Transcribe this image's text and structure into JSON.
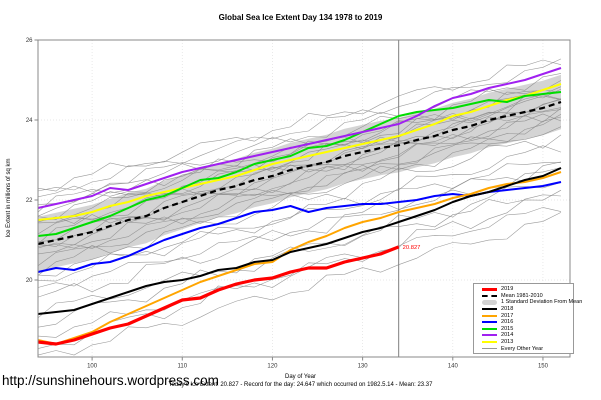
{
  "footer": {
    "url": "http://sunshinehours.wordpress.com"
  },
  "chart_data": {
    "type": "line",
    "title": "Global Sea Ice Extent Day 134 1978 to 2019",
    "xlabel": "Day of Year",
    "ylabel": "Ice Extent in millions of sq km",
    "caption": "Today's Ice Extent: 20.827  - Record for the day: 24.647 which occurred on 1982.5.14  - Mean: 23.37",
    "stats": {
      "today_extent": 20.827,
      "record_for_day": 24.647,
      "record_date": "1982.5.14",
      "mean": 23.37
    },
    "xlim": [
      94,
      153
    ],
    "ylim": [
      18.075,
      26
    ],
    "xticks": [
      100,
      110,
      120,
      130,
      140,
      150
    ],
    "yticks": [
      20,
      22,
      24,
      26
    ],
    "grid": "dotted",
    "today_day": 134,
    "annotation": {
      "label": "20.827",
      "day": 134,
      "value": 20.827,
      "color": "#FF0000"
    },
    "colors": {
      "axis": "#888888",
      "grid": "#E0E0E0",
      "band": "#D4D4D4",
      "today_line": "#808080",
      "background_line": "#8a8a8a"
    },
    "legend": {
      "position": "bottom-right",
      "items": [
        {
          "label": "2019",
          "style": "thick",
          "color": "#FF0000"
        },
        {
          "label": "Mean 1981-2010",
          "style": "dashed",
          "color": "#000000"
        },
        {
          "label": "1 Standard Deviation From Mean",
          "style": "band",
          "color": "#D3D3D3"
        },
        {
          "label": "2018",
          "style": "line",
          "color": "#000000"
        },
        {
          "label": "2017",
          "style": "line",
          "color": "#FFA500"
        },
        {
          "label": "2016",
          "style": "line",
          "color": "#0000FF"
        },
        {
          "label": "2015",
          "style": "line",
          "color": "#00DD00"
        },
        {
          "label": "2014",
          "style": "line",
          "color": "#A020F0"
        },
        {
          "label": "2013",
          "style": "line",
          "color": "#FFFF00"
        },
        {
          "label": "Every Other Year",
          "style": "thin",
          "color": "#999999"
        }
      ]
    },
    "std_band": {
      "label": "1 Standard Deviation From Mean",
      "color": "#D4D4D4",
      "halfwidth": 0.68
    },
    "series": [
      {
        "key": "y2016",
        "name": "2016",
        "color": "#0000FF",
        "width": 2,
        "points": [
          [
            94,
            20.2
          ],
          [
            96,
            20.3
          ],
          [
            98,
            20.25
          ],
          [
            100,
            20.4
          ],
          [
            102,
            20.45
          ],
          [
            104,
            20.6
          ],
          [
            106,
            20.8
          ],
          [
            108,
            21.0
          ],
          [
            110,
            21.15
          ],
          [
            112,
            21.3
          ],
          [
            114,
            21.4
          ],
          [
            116,
            21.55
          ],
          [
            118,
            21.7
          ],
          [
            120,
            21.75
          ],
          [
            122,
            21.85
          ],
          [
            124,
            21.7
          ],
          [
            126,
            21.8
          ],
          [
            128,
            21.85
          ],
          [
            130,
            21.9
          ],
          [
            132,
            21.9
          ],
          [
            134,
            21.95
          ],
          [
            136,
            22.0
          ],
          [
            138,
            22.1
          ],
          [
            140,
            22.15
          ],
          [
            142,
            22.1
          ],
          [
            144,
            22.2
          ],
          [
            146,
            22.25
          ],
          [
            148,
            22.3
          ],
          [
            150,
            22.35
          ],
          [
            152,
            22.45
          ]
        ]
      },
      {
        "key": "y2017",
        "name": "2017",
        "color": "#FFA500",
        "width": 2,
        "points": [
          [
            94,
            18.5
          ],
          [
            96,
            18.4
          ],
          [
            98,
            18.55
          ],
          [
            100,
            18.7
          ],
          [
            102,
            18.95
          ],
          [
            104,
            19.15
          ],
          [
            106,
            19.35
          ],
          [
            108,
            19.55
          ],
          [
            110,
            19.75
          ],
          [
            112,
            19.95
          ],
          [
            114,
            20.1
          ],
          [
            116,
            20.25
          ],
          [
            118,
            20.4
          ],
          [
            120,
            20.45
          ],
          [
            122,
            20.75
          ],
          [
            124,
            20.95
          ],
          [
            126,
            21.1
          ],
          [
            128,
            21.3
          ],
          [
            130,
            21.45
          ],
          [
            132,
            21.55
          ],
          [
            134,
            21.7
          ],
          [
            136,
            21.8
          ],
          [
            138,
            21.9
          ],
          [
            140,
            22.05
          ],
          [
            142,
            22.15
          ],
          [
            144,
            22.3
          ],
          [
            146,
            22.4
          ],
          [
            148,
            22.45
          ],
          [
            150,
            22.55
          ],
          [
            152,
            22.7
          ]
        ]
      },
      {
        "key": "y2018",
        "name": "2018",
        "color": "#000000",
        "width": 2,
        "points": [
          [
            94,
            19.15
          ],
          [
            96,
            19.2
          ],
          [
            98,
            19.25
          ],
          [
            100,
            19.4
          ],
          [
            102,
            19.55
          ],
          [
            104,
            19.7
          ],
          [
            106,
            19.85
          ],
          [
            108,
            19.95
          ],
          [
            110,
            20.0
          ],
          [
            112,
            20.1
          ],
          [
            114,
            20.25
          ],
          [
            116,
            20.3
          ],
          [
            118,
            20.45
          ],
          [
            120,
            20.5
          ],
          [
            122,
            20.7
          ],
          [
            124,
            20.8
          ],
          [
            126,
            20.9
          ],
          [
            128,
            21.05
          ],
          [
            130,
            21.2
          ],
          [
            132,
            21.3
          ],
          [
            134,
            21.45
          ],
          [
            136,
            21.6
          ],
          [
            138,
            21.75
          ],
          [
            140,
            21.95
          ],
          [
            142,
            22.1
          ],
          [
            144,
            22.2
          ],
          [
            146,
            22.35
          ],
          [
            148,
            22.5
          ],
          [
            150,
            22.6
          ],
          [
            152,
            22.8
          ]
        ]
      },
      {
        "key": "y2013",
        "name": "2013",
        "color": "#FFFF00",
        "width": 2,
        "points": [
          [
            94,
            21.5
          ],
          [
            96,
            21.55
          ],
          [
            98,
            21.6
          ],
          [
            100,
            21.7
          ],
          [
            102,
            21.85
          ],
          [
            104,
            21.95
          ],
          [
            106,
            22.1
          ],
          [
            108,
            22.2
          ],
          [
            110,
            22.3
          ],
          [
            112,
            22.4
          ],
          [
            114,
            22.5
          ],
          [
            116,
            22.6
          ],
          [
            118,
            22.75
          ],
          [
            120,
            22.9
          ],
          [
            122,
            23.0
          ],
          [
            124,
            23.1
          ],
          [
            126,
            23.2
          ],
          [
            128,
            23.3
          ],
          [
            130,
            23.4
          ],
          [
            132,
            23.5
          ],
          [
            134,
            23.6
          ],
          [
            136,
            23.75
          ],
          [
            138,
            23.9
          ],
          [
            140,
            24.1
          ],
          [
            142,
            24.2
          ],
          [
            144,
            24.35
          ],
          [
            146,
            24.5
          ],
          [
            148,
            24.6
          ],
          [
            150,
            24.75
          ],
          [
            152,
            24.9
          ]
        ]
      },
      {
        "key": "y2015",
        "name": "2015",
        "color": "#00DD00",
        "width": 2,
        "points": [
          [
            94,
            21.1
          ],
          [
            96,
            21.15
          ],
          [
            98,
            21.3
          ],
          [
            100,
            21.45
          ],
          [
            102,
            21.6
          ],
          [
            104,
            21.8
          ],
          [
            106,
            22.0
          ],
          [
            108,
            22.1
          ],
          [
            110,
            22.3
          ],
          [
            112,
            22.5
          ],
          [
            114,
            22.55
          ],
          [
            116,
            22.7
          ],
          [
            118,
            22.9
          ],
          [
            120,
            23.0
          ],
          [
            122,
            23.1
          ],
          [
            124,
            23.3
          ],
          [
            126,
            23.35
          ],
          [
            128,
            23.5
          ],
          [
            130,
            23.7
          ],
          [
            132,
            23.9
          ],
          [
            134,
            24.1
          ],
          [
            136,
            24.2
          ],
          [
            138,
            24.25
          ],
          [
            140,
            24.3
          ],
          [
            142,
            24.4
          ],
          [
            144,
            24.5
          ],
          [
            146,
            24.45
          ],
          [
            148,
            24.6
          ],
          [
            150,
            24.65
          ],
          [
            152,
            24.7
          ]
        ]
      },
      {
        "key": "y2014",
        "name": "2014",
        "color": "#A020F0",
        "width": 2,
        "points": [
          [
            94,
            21.8
          ],
          [
            96,
            21.9
          ],
          [
            98,
            22.0
          ],
          [
            100,
            22.1
          ],
          [
            102,
            22.3
          ],
          [
            104,
            22.25
          ],
          [
            106,
            22.4
          ],
          [
            108,
            22.55
          ],
          [
            110,
            22.7
          ],
          [
            112,
            22.8
          ],
          [
            114,
            22.9
          ],
          [
            116,
            23.0
          ],
          [
            118,
            23.1
          ],
          [
            120,
            23.2
          ],
          [
            122,
            23.3
          ],
          [
            124,
            23.4
          ],
          [
            126,
            23.5
          ],
          [
            128,
            23.6
          ],
          [
            130,
            23.7
          ],
          [
            132,
            23.8
          ],
          [
            134,
            23.9
          ],
          [
            136,
            24.1
          ],
          [
            138,
            24.35
          ],
          [
            140,
            24.55
          ],
          [
            142,
            24.65
          ],
          [
            144,
            24.8
          ],
          [
            146,
            24.9
          ],
          [
            148,
            25.0
          ],
          [
            150,
            25.15
          ],
          [
            152,
            25.3
          ]
        ]
      },
      {
        "key": "mean",
        "name": "Mean 1981-2010",
        "color": "#000000",
        "width": 2.2,
        "dash": "6,4",
        "points": [
          [
            94,
            20.9
          ],
          [
            96,
            21.0
          ],
          [
            98,
            21.1
          ],
          [
            100,
            21.2
          ],
          [
            102,
            21.35
          ],
          [
            104,
            21.5
          ],
          [
            106,
            21.6
          ],
          [
            108,
            21.8
          ],
          [
            110,
            21.95
          ],
          [
            112,
            22.1
          ],
          [
            114,
            22.25
          ],
          [
            116,
            22.35
          ],
          [
            118,
            22.5
          ],
          [
            120,
            22.6
          ],
          [
            122,
            22.75
          ],
          [
            124,
            22.85
          ],
          [
            126,
            22.95
          ],
          [
            128,
            23.1
          ],
          [
            130,
            23.2
          ],
          [
            132,
            23.3
          ],
          [
            134,
            23.37
          ],
          [
            136,
            23.5
          ],
          [
            138,
            23.6
          ],
          [
            140,
            23.75
          ],
          [
            142,
            23.85
          ],
          [
            144,
            24.0
          ],
          [
            146,
            24.1
          ],
          [
            148,
            24.2
          ],
          [
            150,
            24.3
          ],
          [
            152,
            24.45
          ]
        ]
      },
      {
        "key": "y2019",
        "name": "2019",
        "color": "#FF0000",
        "width": 3.2,
        "points": [
          [
            94,
            18.45
          ],
          [
            96,
            18.4
          ],
          [
            98,
            18.5
          ],
          [
            100,
            18.65
          ],
          [
            102,
            18.8
          ],
          [
            104,
            18.9
          ],
          [
            106,
            19.1
          ],
          [
            108,
            19.3
          ],
          [
            110,
            19.5
          ],
          [
            112,
            19.55
          ],
          [
            114,
            19.75
          ],
          [
            116,
            19.9
          ],
          [
            118,
            20.0
          ],
          [
            120,
            20.05
          ],
          [
            122,
            20.2
          ],
          [
            124,
            20.3
          ],
          [
            126,
            20.3
          ],
          [
            128,
            20.45
          ],
          [
            130,
            20.55
          ],
          [
            132,
            20.65
          ],
          [
            134,
            20.827
          ]
        ]
      }
    ],
    "background_years": {
      "label": "Every Other Year",
      "lines": [
        [
          18.05,
          21.6,
          0.12,
          0.5
        ],
        [
          18.3,
          22.2,
          0.15,
          1.3
        ],
        [
          18.6,
          21.9,
          0.1,
          2.1
        ],
        [
          18.9,
          22.6,
          0.14,
          3.0
        ],
        [
          19.2,
          22.3,
          0.12,
          4.2
        ],
        [
          19.5,
          23.0,
          0.16,
          5.1
        ],
        [
          19.8,
          22.8,
          0.1,
          0.9
        ],
        [
          20.0,
          23.4,
          0.13,
          1.8
        ],
        [
          20.15,
          23.1,
          0.11,
          2.7
        ],
        [
          20.3,
          23.7,
          0.15,
          3.6
        ],
        [
          20.45,
          23.9,
          0.12,
          4.5
        ],
        [
          20.55,
          24.1,
          0.1,
          5.4
        ],
        [
          20.7,
          24.0,
          0.14,
          0.2
        ],
        [
          20.8,
          24.3,
          0.11,
          1.1
        ],
        [
          20.9,
          24.2,
          0.13,
          2.0
        ],
        [
          21.0,
          24.45,
          0.1,
          2.9
        ],
        [
          21.1,
          24.35,
          0.15,
          3.8
        ],
        [
          21.2,
          24.6,
          0.12,
          4.7
        ],
        [
          21.3,
          24.5,
          0.1,
          5.6
        ],
        [
          21.4,
          24.75,
          0.14,
          0.7
        ],
        [
          21.5,
          24.65,
          0.11,
          1.6
        ],
        [
          21.6,
          24.9,
          0.13,
          2.5
        ],
        [
          21.7,
          24.85,
          0.1,
          3.4
        ],
        [
          21.85,
          25.05,
          0.14,
          4.3
        ],
        [
          22.0,
          25.2,
          0.12,
          5.2
        ],
        [
          22.15,
          25.45,
          0.1,
          0.4
        ],
        [
          21.9,
          24.647,
          0.13,
          1.5
        ],
        [
          22.3,
          25.6,
          0.12,
          2.3
        ]
      ]
    }
  }
}
